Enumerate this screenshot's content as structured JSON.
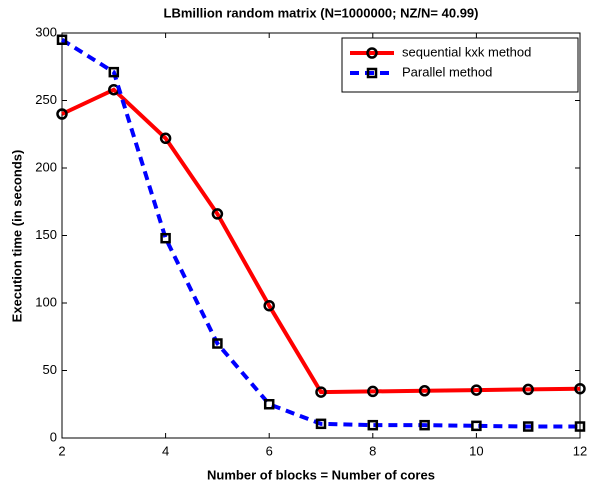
{
  "chart_data": {
    "type": "line",
    "title": "LBmillion random matrix (N=1000000; NZ/N= 40.99)",
    "x_label": "Number of blocks = Number of cores",
    "y_label": "Execution time (in seconds)",
    "x": [
      2,
      3,
      4,
      5,
      6,
      7,
      8,
      9,
      10,
      11,
      12
    ],
    "series": [
      {
        "name": "sequential kxk method",
        "color": "#ff0000",
        "dash": "solid",
        "marker": "circle",
        "values": [
          240,
          258,
          222,
          166,
          98,
          34,
          34.5,
          35,
          35.5,
          36,
          36.5
        ]
      },
      {
        "name": "Parallel method",
        "color": "#0000ff",
        "dash": "dashed",
        "marker": "square",
        "values": [
          295,
          271,
          148,
          70,
          25,
          10.5,
          9.5,
          9.5,
          9,
          8.5,
          8.5
        ]
      }
    ],
    "xlim": [
      2,
      12
    ],
    "xticks": [
      2,
      4,
      6,
      8,
      10,
      12
    ],
    "ylim": [
      0,
      300
    ],
    "yticks": [
      0,
      50,
      100,
      150,
      200,
      250,
      300
    ],
    "grid": false,
    "legend": "upper-right"
  }
}
